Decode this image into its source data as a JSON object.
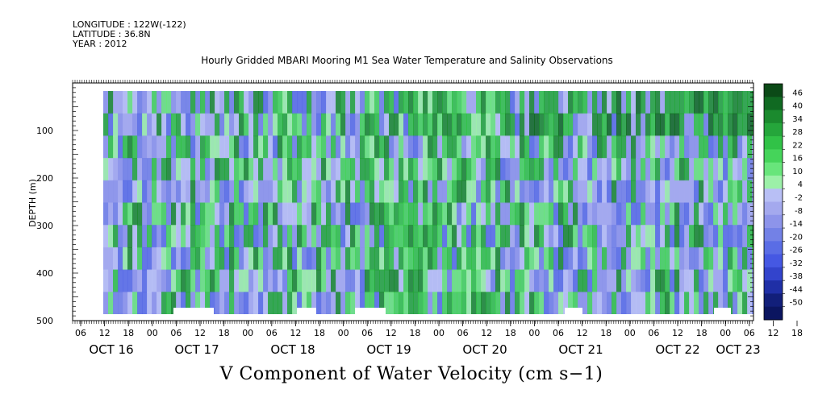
{
  "header": {
    "longitude": "LONGITUDE : 122W(-122)",
    "latitude": "LATITUDE : 36.8N",
    "year": "YEAR : 2012"
  },
  "title": "Hourly Gridded MBARI Mooring M1 Sea Water Temperature and Salinity Observations",
  "bottom_title": "V Component of Water Velocity (cm s−1)",
  "chart_data": {
    "type": "heatmap",
    "variable": "V Component of Water Velocity (cm s−1)",
    "ylabel": "DEPTH (m)",
    "ylim": [
      500,
      0
    ],
    "y_ticks": [
      100,
      200,
      300,
      400,
      500
    ],
    "y_tick_labels": [
      "100",
      "200",
      "300",
      "400",
      "500"
    ],
    "x_hour_ticks": [
      "06",
      "12",
      "18",
      "00",
      "06",
      "12",
      "18",
      "00",
      "06",
      "12",
      "18",
      "00",
      "06",
      "12",
      "18",
      "00",
      "06",
      "12",
      "18",
      "00",
      "06",
      "12",
      "18",
      "00",
      "06",
      "12",
      "18",
      "00",
      "06",
      "12",
      "18",
      "00"
    ],
    "x_date_labels": [
      "OCT 16",
      "OCT 17",
      "OCT 18",
      "OCT 19",
      "OCT 20",
      "OCT 21",
      "OCT 22",
      "OCT 23"
    ],
    "colorbar_levels": [
      "46",
      "40",
      "34",
      "28",
      "22",
      "16",
      "10",
      "4",
      "-2",
      "-8",
      "-14",
      "-20",
      "-26",
      "-32",
      "-38",
      "-44",
      "-50"
    ],
    "colorbar_colors": [
      "#0b4a17",
      "#106a22",
      "#1b8a2e",
      "#25a63b",
      "#31c247",
      "#45d45a",
      "#68e57b",
      "#9cf0a8",
      "#b8bff5",
      "#a4a9ee",
      "#8d94ea",
      "#7381e6",
      "#5a6de5",
      "#4558e3",
      "#3344cc",
      "#1f2fa6",
      "#121f7a",
      "#0b1560"
    ],
    "data_summary": {
      "time_range": [
        "OCT 16 12:00",
        "OCT 23 06:00"
      ],
      "depth_range_m": [
        20,
        490
      ],
      "value_range": [
        -50,
        46
      ]
    }
  }
}
